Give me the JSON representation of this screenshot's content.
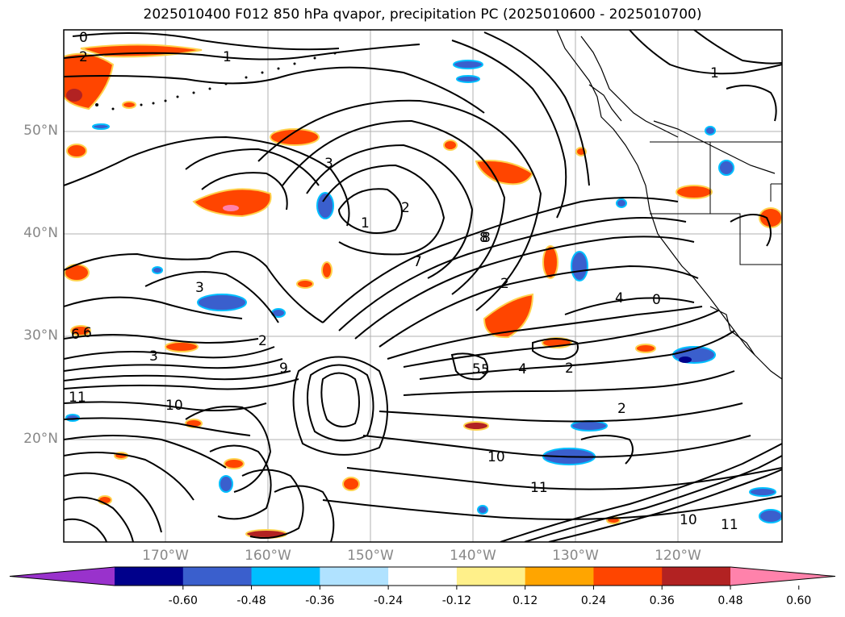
{
  "title": "2025010400 F012 850 hPa qvapor, precipitation PC (2025010600 - 2025010700)",
  "lat_labels": [
    "50°N",
    "40°N",
    "30°N",
    "20°N"
  ],
  "lon_labels": [
    "170°W",
    "160°W",
    "150°W",
    "140°W",
    "130°W",
    "120°W"
  ],
  "colorbar": {
    "colors": [
      "#9932cc",
      "#00008b",
      "#3a5fcd",
      "#00bfff",
      "#b0e2ff",
      "#ffffff",
      "#fff08a",
      "#ffa500",
      "#ff4500",
      "#b22222",
      "#ff82ab"
    ],
    "tick_labels": [
      "-0.60",
      "-0.48",
      "-0.36",
      "-0.24",
      "-0.12",
      "0.12",
      "0.24",
      "0.36",
      "0.48",
      "0.60"
    ],
    "extend": "both"
  },
  "contour_labels": [
    "0",
    "2",
    "1",
    "3",
    "2",
    "1",
    "2",
    "3",
    "4",
    "5",
    "6",
    "7",
    "8",
    "9",
    "10",
    "11",
    "2",
    "1",
    "4",
    "2",
    "0",
    "11",
    "10",
    "8",
    "6",
    "5",
    "3",
    "2",
    "10",
    "11"
  ],
  "colors": {
    "positive_fill": "#ff4500",
    "negative_fill": "#3a5fcd",
    "contour": "#000000",
    "grid": "#b0b0b0"
  }
}
